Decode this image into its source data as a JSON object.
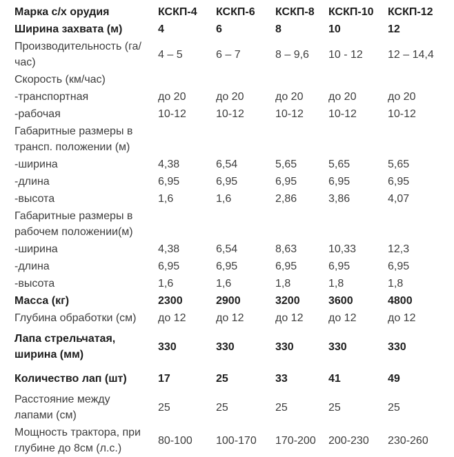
{
  "page": {
    "background": "#ffffff",
    "text_color": "#3d3d3d",
    "bold_text_color": "#1d1d1d"
  },
  "chart_data": {
    "type": "table",
    "title": "",
    "columns": [
      "Марка с/х орудия",
      "КСКП-4",
      "КСКП-6",
      "КСКП-8",
      "КСКП-10",
      "КСКП-12"
    ],
    "rows": [
      {
        "label": "Марка с/х орудия",
        "bold": true,
        "values": [
          "КСКП-4",
          "КСКП-6",
          "КСКП-8",
          "КСКП-10",
          "КСКП-12"
        ]
      },
      {
        "label": "Ширина захвата (м)",
        "bold": true,
        "values": [
          "4",
          "6",
          "8",
          "10",
          "12"
        ]
      },
      {
        "label": "Производительность (га/час)",
        "bold": false,
        "values": [
          "4 – 5",
          "6 – 7",
          "8 – 9,6",
          "10 - 12",
          "12 – 14,4"
        ]
      },
      {
        "label": "Скорость (км/час)",
        "bold": false,
        "values": [
          "",
          "",
          "",
          "",
          ""
        ]
      },
      {
        "label": "-транспортная",
        "bold": false,
        "values": [
          "до 20",
          "до 20",
          "до 20",
          "до 20",
          "до 20"
        ]
      },
      {
        "label": "-рабочая",
        "bold": false,
        "values": [
          "10-12",
          "10-12",
          "10-12",
          "10-12",
          "10-12"
        ]
      },
      {
        "label": "Габаритные размеры в трансп. положении (м)",
        "bold": false,
        "values": [
          "",
          "",
          "",
          "",
          ""
        ]
      },
      {
        "label": "-ширина",
        "bold": false,
        "values": [
          "4,38",
          "6,54",
          "5,65",
          "5,65",
          "5,65"
        ]
      },
      {
        "label": "-длина",
        "bold": false,
        "values": [
          "6,95",
          "6,95",
          "6,95",
          "6,95",
          "6,95"
        ]
      },
      {
        "label": "-высота",
        "bold": false,
        "values": [
          "1,6",
          "1,6",
          "2,86",
          "3,86",
          "4,07"
        ]
      },
      {
        "label": "Габаритные размеры в рабочем положении(м)",
        "bold": false,
        "values": [
          "",
          "",
          "",
          "",
          ""
        ]
      },
      {
        "label": "-ширина",
        "bold": false,
        "values": [
          "4,38",
          "6,54",
          "8,63",
          "10,33",
          "12,3"
        ]
      },
      {
        "label": "-длина",
        "bold": false,
        "values": [
          "6,95",
          "6,95",
          "6,95",
          "6,95",
          "6,95"
        ]
      },
      {
        "label": "-высота",
        "bold": false,
        "values": [
          "1,6",
          "1,6",
          "1,8",
          "1,8",
          "1,8"
        ]
      },
      {
        "label": "Масса (кг)",
        "bold": true,
        "values": [
          "2300",
          "2900",
          "3200",
          "3600",
          "4800"
        ]
      },
      {
        "label": "Глубина обработки (см)",
        "bold": false,
        "values": [
          "до 12",
          "до 12",
          "до 12",
          "до 12",
          "до 12"
        ]
      },
      {
        "label": "Лапа стрельчатая, ширина (мм)",
        "bold": true,
        "gap": true,
        "values": [
          "330",
          "330",
          "330",
          "330",
          "330"
        ]
      },
      {
        "label": "Количество лап (шт)",
        "bold": true,
        "gap": true,
        "values": [
          "17",
          "25",
          "33",
          "41",
          "49"
        ]
      },
      {
        "label": "Расстояние между лапами (см)",
        "bold": false,
        "values": [
          "25",
          "25",
          "25",
          "25",
          "25"
        ]
      },
      {
        "label": "Мощность трактора, при глубине до 8см (л.с.)",
        "bold": false,
        "values": [
          "80-100",
          "100-170",
          "170-200",
          "200-230",
          "230-260"
        ]
      }
    ]
  }
}
